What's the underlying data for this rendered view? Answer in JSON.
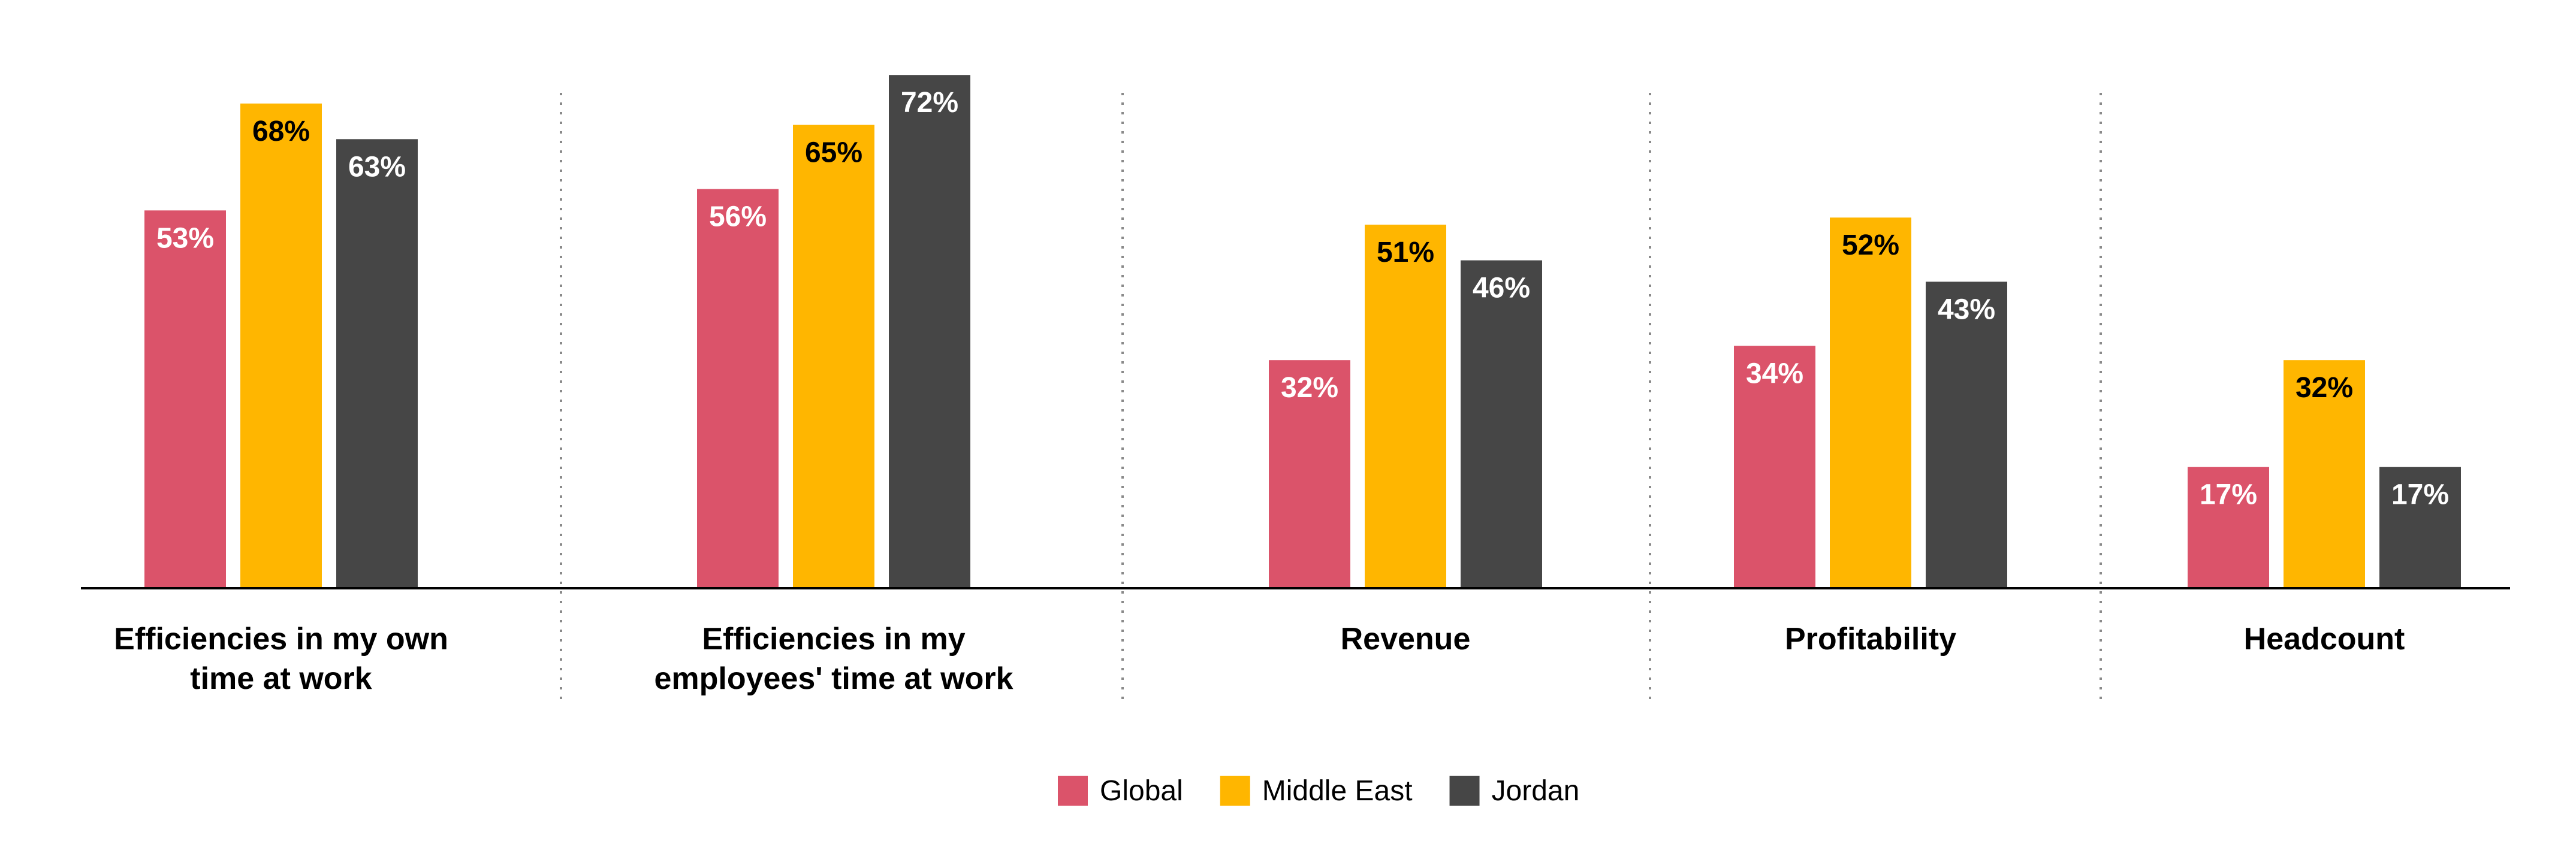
{
  "chart_data": {
    "type": "bar",
    "title": "",
    "xlabel": "",
    "ylabel": "",
    "ylim": [
      0,
      72
    ],
    "grid": false,
    "legend_position": "bottom-center",
    "categories": [
      [
        "Efficiencies in my own",
        "time at work"
      ],
      [
        "Efficiencies in my",
        "employees' time at work"
      ],
      [
        "Revenue"
      ],
      [
        "Profitability"
      ],
      [
        "Headcount"
      ]
    ],
    "series": [
      {
        "name": "Global",
        "color": "#DB536A",
        "label_color": "#FFFFFF",
        "values": [
          53,
          56,
          32,
          34,
          17
        ],
        "labels": [
          "53%",
          "56%",
          "32%",
          "34%",
          "17%"
        ]
      },
      {
        "name": "Middle East",
        "color": "#FFB600",
        "label_color": "#000000",
        "values": [
          68,
          65,
          51,
          52,
          32
        ],
        "labels": [
          "68%",
          "65%",
          "51%",
          "52%",
          "32%"
        ]
      },
      {
        "name": "Jordan",
        "color": "#464646",
        "label_color": "#FFFFFF",
        "values": [
          63,
          72,
          46,
          43,
          17
        ],
        "labels": [
          "63%",
          "72%",
          "46%",
          "43%",
          "17%"
        ]
      }
    ]
  }
}
